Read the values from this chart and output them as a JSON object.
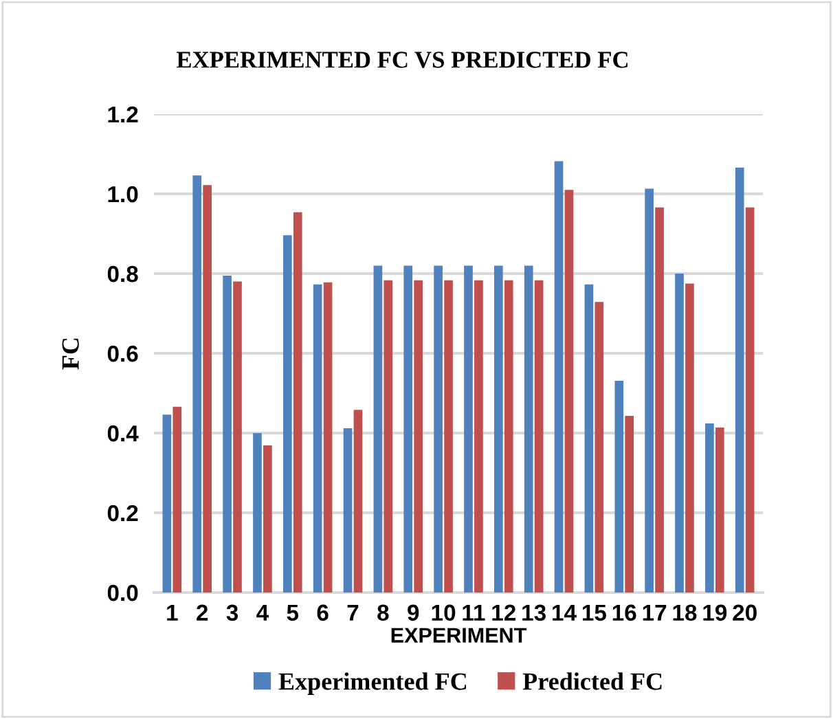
{
  "chart_data": {
    "type": "bar",
    "title": "EXPERIMENTED FC VS PREDICTED FC",
    "xlabel": "EXPERIMENT",
    "ylabel": "FC",
    "categories": [
      "1",
      "2",
      "3",
      "4",
      "5",
      "6",
      "7",
      "8",
      "9",
      "10",
      "11",
      "12",
      "13",
      "14",
      "15",
      "16",
      "17",
      "18",
      "19",
      "20"
    ],
    "series": [
      {
        "name": "Experimented FC",
        "color": "#4f81bd",
        "values": [
          0.446,
          1.046,
          0.795,
          0.4,
          0.896,
          0.773,
          0.412,
          0.82,
          0.82,
          0.82,
          0.82,
          0.82,
          0.82,
          1.082,
          0.773,
          0.531,
          1.013,
          0.8,
          0.424,
          1.066
        ]
      },
      {
        "name": "Predicted FC",
        "color": "#c0504d",
        "values": [
          0.466,
          1.022,
          0.78,
          0.369,
          0.954,
          0.778,
          0.458,
          0.783,
          0.783,
          0.783,
          0.783,
          0.783,
          0.783,
          1.01,
          0.729,
          0.443,
          0.966,
          0.775,
          0.414,
          0.966
        ]
      }
    ],
    "ylim": [
      0,
      1.2
    ],
    "yticks": [
      {
        "value": 0,
        "label": "0.0"
      },
      {
        "value": 0.2,
        "label": "0.2"
      },
      {
        "value": 0.4,
        "label": "0.4"
      },
      {
        "value": 0.6,
        "label": "0.6"
      },
      {
        "value": 0.8,
        "label": "0.8"
      },
      {
        "value": 1.0,
        "label": "1.0"
      },
      {
        "value": 1.2,
        "label": "1.2"
      }
    ],
    "grid": "y",
    "legend": "bottom"
  }
}
